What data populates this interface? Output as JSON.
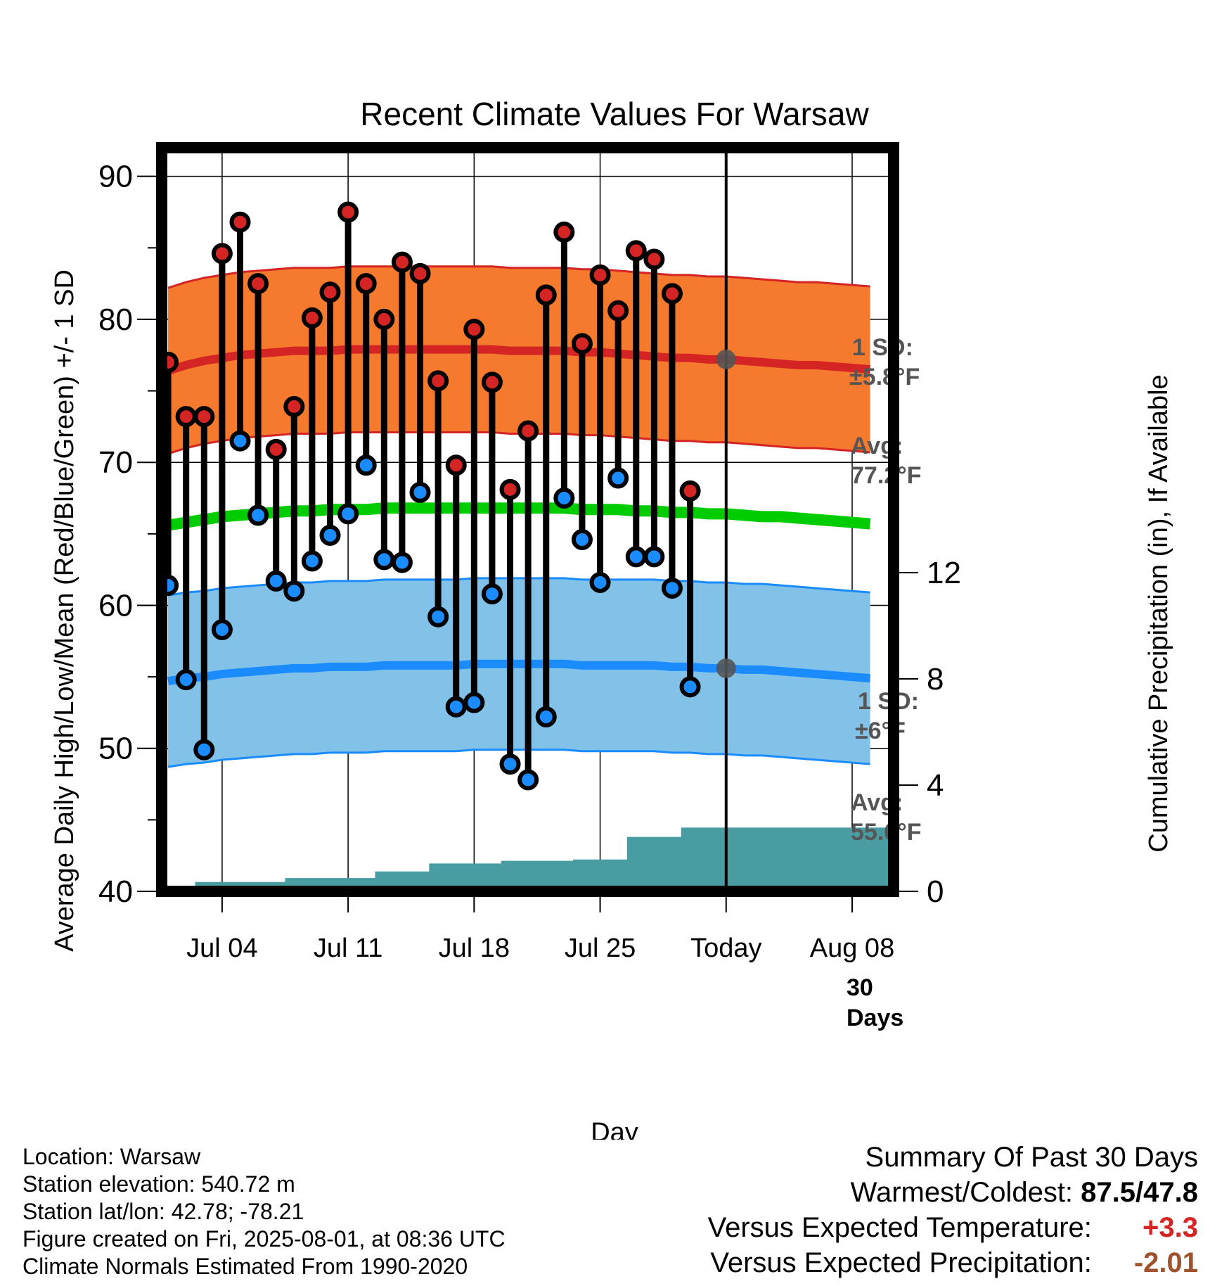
{
  "chart_data": {
    "type": "line",
    "title": "Recent Climate Values For Warsaw",
    "xlabel": "Day",
    "ylabel_left": "Average Daily High/Low/Mean (Red/Blue/Green) +/- 1 SD",
    "ylabel_right": "Cumulative Precipitation (in), If Available",
    "ylim": [
      40,
      92
    ],
    "y_ticks": [
      40,
      50,
      60,
      70,
      80,
      90
    ],
    "y2lim": [
      0,
      28
    ],
    "y2_ticks": [
      0,
      4,
      8,
      12
    ],
    "x_ticks": [
      {
        "day": 4,
        "label": "Jul 04"
      },
      {
        "day": 11,
        "label": "Jul 11"
      },
      {
        "day": 18,
        "label": "Jul 18"
      },
      {
        "day": 25,
        "label": "Jul 25"
      },
      {
        "day": 32,
        "label": "Today"
      },
      {
        "day": 39,
        "label": "Aug 08"
      }
    ],
    "today_day": 32,
    "high": [
      77.0,
      73.2,
      73.2,
      84.6,
      86.8,
      82.5,
      70.9,
      73.9,
      80.1,
      81.9,
      87.5,
      82.5,
      80.0,
      84.0,
      83.2,
      75.7,
      69.8,
      79.3,
      75.6,
      68.1,
      72.2,
      81.7,
      86.1,
      78.3,
      83.1,
      80.6,
      84.8,
      84.2,
      81.8,
      68.0
    ],
    "low": [
      61.4,
      54.8,
      49.9,
      58.3,
      71.5,
      66.3,
      61.7,
      61.0,
      63.1,
      64.9,
      66.4,
      69.8,
      63.2,
      63.0,
      67.9,
      59.2,
      52.9,
      53.2,
      60.8,
      48.9,
      47.8,
      52.2,
      67.5,
      64.6,
      61.6,
      68.9,
      63.4,
      63.4,
      61.2,
      54.3
    ],
    "normal_high": [
      76.4,
      76.8,
      77.1,
      77.3,
      77.5,
      77.6,
      77.7,
      77.8,
      77.8,
      77.8,
      77.9,
      77.9,
      77.9,
      77.9,
      77.9,
      77.9,
      77.9,
      77.9,
      77.9,
      77.8,
      77.8,
      77.8,
      77.8,
      77.7,
      77.7,
      77.6,
      77.5,
      77.4,
      77.3,
      77.3,
      77.2,
      77.2,
      77.1,
      77.0,
      76.9,
      76.8,
      76.8,
      76.7,
      76.6,
      76.5
    ],
    "normal_low": [
      54.7,
      54.9,
      55.0,
      55.2,
      55.3,
      55.4,
      55.5,
      55.6,
      55.6,
      55.7,
      55.7,
      55.7,
      55.8,
      55.8,
      55.8,
      55.8,
      55.8,
      55.9,
      55.9,
      55.9,
      55.9,
      55.9,
      55.9,
      55.8,
      55.8,
      55.8,
      55.8,
      55.8,
      55.7,
      55.7,
      55.6,
      55.6,
      55.5,
      55.5,
      55.4,
      55.3,
      55.2,
      55.1,
      55.0,
      54.9
    ],
    "normal_mean": [
      65.6,
      65.8,
      66.0,
      66.2,
      66.3,
      66.4,
      66.5,
      66.6,
      66.6,
      66.7,
      66.7,
      66.7,
      66.8,
      66.8,
      66.8,
      66.8,
      66.8,
      66.8,
      66.8,
      66.8,
      66.8,
      66.8,
      66.8,
      66.7,
      66.7,
      66.7,
      66.6,
      66.6,
      66.5,
      66.5,
      66.4,
      66.4,
      66.3,
      66.2,
      66.2,
      66.1,
      66.0,
      65.9,
      65.8,
      65.7
    ],
    "sd_high": 5.8,
    "sd_low": 6.0,
    "cumulative_precip": [
      0.0,
      0.0,
      0.35,
      0.35,
      0.35,
      0.35,
      0.35,
      0.5,
      0.5,
      0.5,
      0.5,
      0.5,
      0.75,
      0.75,
      0.75,
      1.05,
      1.05,
      1.05,
      1.05,
      1.15,
      1.15,
      1.15,
      1.15,
      1.2,
      1.2,
      1.2,
      2.05,
      2.05,
      2.05,
      2.4,
      2.4,
      2.4,
      2.4,
      2.4,
      2.4,
      2.4,
      2.4,
      2.4,
      2.4,
      2.4,
      2.4
    ],
    "colors": {
      "high_band": "#f57a2e",
      "high_line": "#d42424",
      "low_band": "#82c2e8",
      "low_line": "#1a8cff",
      "mean_line": "#00cc00",
      "precip": "#4a9ca3",
      "annotation": "#555555",
      "high_dot": "#d42424",
      "low_dot": "#1a8cff"
    }
  },
  "annotations": {
    "high_sd_label": "1 SD:",
    "high_sd_value": "±5.8°F",
    "high_avg_label": "Avg:",
    "high_avg_value": "77.2°F",
    "low_sd_label": "1 SD:",
    "low_sd_value": "±6°F",
    "low_avg_label": "Avg:",
    "low_avg_value": "55.6°F",
    "precip_label_1": "30",
    "precip_label_2": "Days"
  },
  "info": {
    "location": "Location: Warsaw",
    "elevation": "Station elevation: 540.72 m",
    "latlon": "Station lat/lon: 42.78; -78.21",
    "created": "Figure created on Fri, 2025-08-01, at 08:36 UTC",
    "normals": "Climate Normals Estimated From 1990-2020"
  },
  "summary": {
    "title": "Summary Of Past 30 Days",
    "warm_cold_label": "Warmest/Coldest:",
    "warm_cold_value": "87.5/47.8",
    "temp_label": "Versus Expected Temperature:",
    "temp_value": "+3.3",
    "temp_color": "#d42424",
    "precip_label": "Versus Expected Precipitation:",
    "precip_value": "-2.01",
    "precip_color": "#a0522d"
  }
}
